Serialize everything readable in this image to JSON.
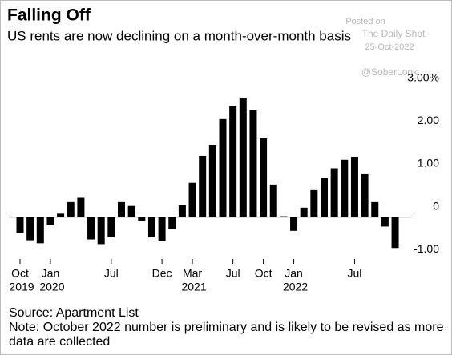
{
  "chart_data": {
    "type": "bar",
    "title": "Falling Off",
    "subtitle": "US rents are now declining on a month-over-month basis",
    "categories": [
      "Oct",
      null,
      null,
      "Jan",
      null,
      null,
      null,
      null,
      null,
      "Jul",
      null,
      null,
      null,
      null,
      "Dec",
      null,
      null,
      "Mar",
      null,
      null,
      null,
      "Jul",
      null,
      null,
      "Oct",
      null,
      null,
      "Jan",
      null,
      null,
      null,
      null,
      null,
      "Jul",
      null,
      null,
      null,
      null
    ],
    "category_years": [
      "2019",
      null,
      null,
      "2020",
      null,
      null,
      null,
      null,
      null,
      null,
      null,
      null,
      null,
      null,
      null,
      null,
      null,
      "2021",
      null,
      null,
      null,
      null,
      null,
      null,
      null,
      null,
      null,
      "2022",
      null,
      null,
      null,
      null,
      null,
      null,
      null,
      null,
      null,
      null
    ],
    "values": [
      -0.37,
      -0.54,
      -0.61,
      -0.19,
      0.08,
      0.35,
      0.45,
      -0.52,
      -0.63,
      -0.47,
      0.35,
      0.26,
      -0.09,
      -0.47,
      -0.56,
      -0.28,
      0.28,
      0.8,
      1.43,
      1.69,
      2.29,
      2.59,
      2.77,
      2.51,
      1.84,
      0.76,
      0.02,
      -0.32,
      0.22,
      0.63,
      0.91,
      1.14,
      1.34,
      1.41,
      1.02,
      0.35,
      -0.22,
      -0.72
    ],
    "color": "#000000",
    "ylim": [
      -1.2,
      3.2
    ],
    "yticks": [
      {
        "value": 3,
        "label": "3.00%"
      },
      {
        "value": 2,
        "label": "2.00"
      },
      {
        "value": 1,
        "label": "1.00"
      },
      0,
      {
        "value": -1,
        "label": "-1.00"
      }
    ],
    "grid": false,
    "source": "Source: Apartment List",
    "note": [
      "Note: October 2022 number is preliminary and is likely to be revised as more",
      "data are collected"
    ],
    "watermark": [
      "Posted on",
      "The Daily Shot",
      "25-Oct-2022",
      "@SoberLook"
    ]
  }
}
